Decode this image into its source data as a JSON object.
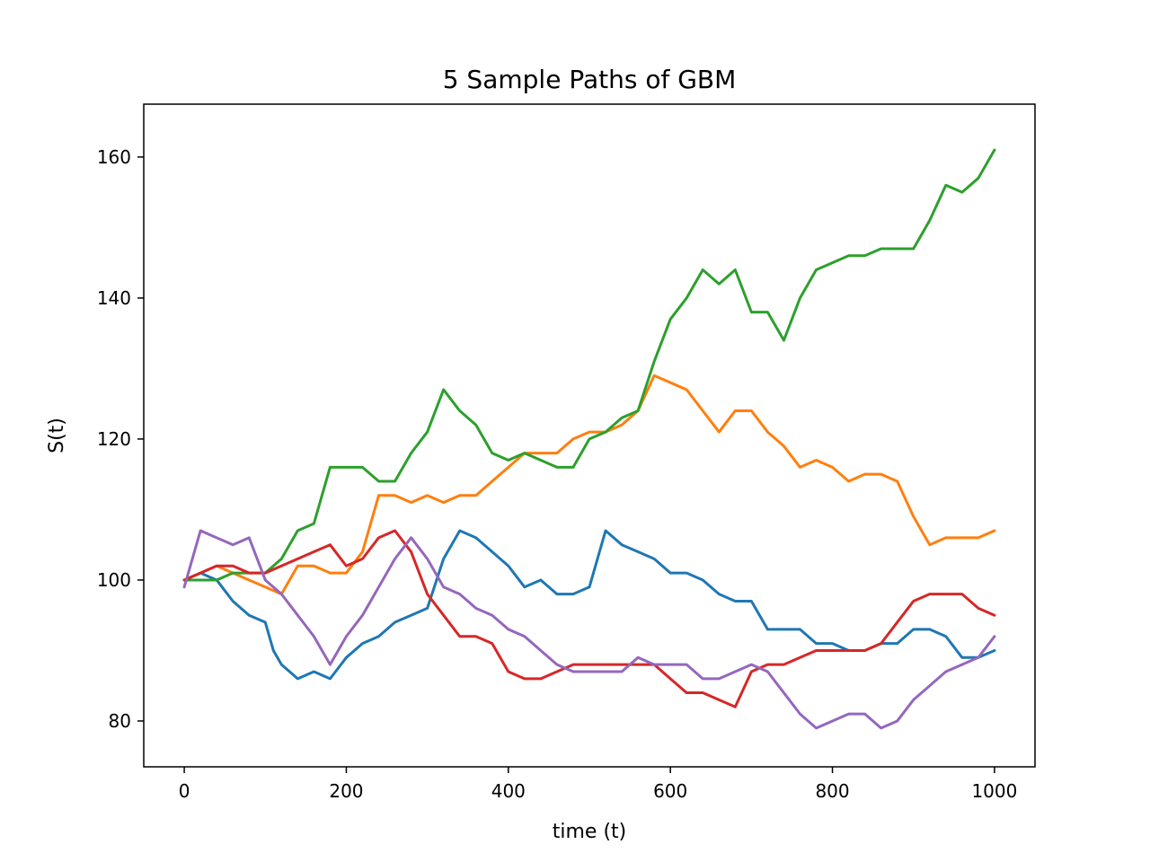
{
  "chart_data": {
    "type": "line",
    "title": "5 Sample Paths of GBM",
    "xlabel": "time (t)",
    "ylabel": "S(t)",
    "xlim": [
      -50,
      1050
    ],
    "ylim": [
      73.5,
      167.5
    ],
    "xticks": [
      0,
      200,
      400,
      600,
      800,
      1000
    ],
    "yticks": [
      80,
      100,
      120,
      140,
      160
    ],
    "grid": false,
    "legend": "none",
    "series": [
      {
        "color": "#1f77b4",
        "points": [
          [
            0,
            100
          ],
          [
            20,
            101
          ],
          [
            40,
            100
          ],
          [
            60,
            97
          ],
          [
            80,
            95
          ],
          [
            100,
            94
          ],
          [
            110,
            90
          ],
          [
            120,
            88
          ],
          [
            140,
            86
          ],
          [
            160,
            87
          ],
          [
            180,
            86
          ],
          [
            200,
            89
          ],
          [
            220,
            91
          ],
          [
            240,
            92
          ],
          [
            260,
            94
          ],
          [
            280,
            95
          ],
          [
            300,
            96
          ],
          [
            320,
            103
          ],
          [
            340,
            107
          ],
          [
            360,
            106
          ],
          [
            380,
            104
          ],
          [
            400,
            102
          ],
          [
            420,
            99
          ],
          [
            440,
            100
          ],
          [
            460,
            98
          ],
          [
            480,
            98
          ],
          [
            500,
            99
          ],
          [
            520,
            107
          ],
          [
            540,
            105
          ],
          [
            560,
            104
          ],
          [
            580,
            103
          ],
          [
            600,
            101
          ],
          [
            620,
            101
          ],
          [
            640,
            100
          ],
          [
            660,
            98
          ],
          [
            680,
            97
          ],
          [
            700,
            97
          ],
          [
            720,
            93
          ],
          [
            740,
            93
          ],
          [
            760,
            93
          ],
          [
            780,
            91
          ],
          [
            800,
            91
          ],
          [
            820,
            90
          ],
          [
            840,
            90
          ],
          [
            860,
            91
          ],
          [
            880,
            91
          ],
          [
            900,
            93
          ],
          [
            920,
            93
          ],
          [
            940,
            92
          ],
          [
            960,
            89
          ],
          [
            980,
            89
          ],
          [
            1000,
            90
          ]
        ]
      },
      {
        "color": "#ff7f0e",
        "points": [
          [
            0,
            100
          ],
          [
            20,
            101
          ],
          [
            40,
            102
          ],
          [
            60,
            101
          ],
          [
            80,
            100
          ],
          [
            100,
            99
          ],
          [
            120,
            98
          ],
          [
            140,
            102
          ],
          [
            160,
            102
          ],
          [
            180,
            101
          ],
          [
            200,
            101
          ],
          [
            220,
            104
          ],
          [
            240,
            112
          ],
          [
            260,
            112
          ],
          [
            280,
            111
          ],
          [
            300,
            112
          ],
          [
            320,
            111
          ],
          [
            340,
            112
          ],
          [
            360,
            112
          ],
          [
            380,
            114
          ],
          [
            400,
            116
          ],
          [
            420,
            118
          ],
          [
            440,
            118
          ],
          [
            460,
            118
          ],
          [
            480,
            120
          ],
          [
            500,
            121
          ],
          [
            520,
            121
          ],
          [
            540,
            122
          ],
          [
            560,
            124
          ],
          [
            580,
            129
          ],
          [
            600,
            128
          ],
          [
            620,
            127
          ],
          [
            640,
            124
          ],
          [
            660,
            121
          ],
          [
            680,
            124
          ],
          [
            700,
            124
          ],
          [
            720,
            121
          ],
          [
            740,
            119
          ],
          [
            760,
            116
          ],
          [
            780,
            117
          ],
          [
            800,
            116
          ],
          [
            820,
            114
          ],
          [
            840,
            115
          ],
          [
            860,
            115
          ],
          [
            880,
            114
          ],
          [
            900,
            109
          ],
          [
            920,
            105
          ],
          [
            940,
            106
          ],
          [
            960,
            106
          ],
          [
            980,
            106
          ],
          [
            1000,
            107
          ]
        ]
      },
      {
        "color": "#2ca02c",
        "points": [
          [
            0,
            100
          ],
          [
            20,
            100
          ],
          [
            40,
            100
          ],
          [
            60,
            101
          ],
          [
            80,
            101
          ],
          [
            100,
            101
          ],
          [
            120,
            103
          ],
          [
            140,
            107
          ],
          [
            160,
            108
          ],
          [
            180,
            116
          ],
          [
            200,
            116
          ],
          [
            220,
            116
          ],
          [
            240,
            114
          ],
          [
            260,
            114
          ],
          [
            280,
            118
          ],
          [
            300,
            121
          ],
          [
            320,
            127
          ],
          [
            340,
            124
          ],
          [
            360,
            122
          ],
          [
            380,
            118
          ],
          [
            400,
            117
          ],
          [
            420,
            118
          ],
          [
            440,
            117
          ],
          [
            460,
            116
          ],
          [
            480,
            116
          ],
          [
            500,
            120
          ],
          [
            520,
            121
          ],
          [
            540,
            123
          ],
          [
            560,
            124
          ],
          [
            580,
            131
          ],
          [
            600,
            137
          ],
          [
            620,
            140
          ],
          [
            640,
            144
          ],
          [
            660,
            142
          ],
          [
            680,
            144
          ],
          [
            700,
            138
          ],
          [
            720,
            138
          ],
          [
            740,
            134
          ],
          [
            760,
            140
          ],
          [
            780,
            144
          ],
          [
            800,
            145
          ],
          [
            820,
            146
          ],
          [
            840,
            146
          ],
          [
            860,
            147
          ],
          [
            880,
            147
          ],
          [
            900,
            147
          ],
          [
            920,
            151
          ],
          [
            940,
            156
          ],
          [
            960,
            155
          ],
          [
            980,
            157
          ],
          [
            1000,
            161
          ]
        ]
      },
      {
        "color": "#d62728",
        "points": [
          [
            0,
            100
          ],
          [
            20,
            101
          ],
          [
            40,
            102
          ],
          [
            60,
            102
          ],
          [
            80,
            101
          ],
          [
            100,
            101
          ],
          [
            120,
            102
          ],
          [
            140,
            103
          ],
          [
            160,
            104
          ],
          [
            180,
            105
          ],
          [
            200,
            102
          ],
          [
            220,
            103
          ],
          [
            240,
            106
          ],
          [
            260,
            107
          ],
          [
            280,
            104
          ],
          [
            300,
            98
          ],
          [
            320,
            95
          ],
          [
            340,
            92
          ],
          [
            360,
            92
          ],
          [
            380,
            91
          ],
          [
            400,
            87
          ],
          [
            420,
            86
          ],
          [
            440,
            86
          ],
          [
            460,
            87
          ],
          [
            480,
            88
          ],
          [
            500,
            88
          ],
          [
            520,
            88
          ],
          [
            540,
            88
          ],
          [
            560,
            88
          ],
          [
            580,
            88
          ],
          [
            600,
            86
          ],
          [
            620,
            84
          ],
          [
            640,
            84
          ],
          [
            660,
            83
          ],
          [
            680,
            82
          ],
          [
            700,
            87
          ],
          [
            720,
            88
          ],
          [
            740,
            88
          ],
          [
            760,
            89
          ],
          [
            780,
            90
          ],
          [
            800,
            90
          ],
          [
            820,
            90
          ],
          [
            840,
            90
          ],
          [
            860,
            91
          ],
          [
            880,
            94
          ],
          [
            900,
            97
          ],
          [
            920,
            98
          ],
          [
            940,
            98
          ],
          [
            960,
            98
          ],
          [
            980,
            96
          ],
          [
            1000,
            95
          ]
        ]
      },
      {
        "color": "#9467bd",
        "points": [
          [
            0,
            99
          ],
          [
            20,
            107
          ],
          [
            40,
            106
          ],
          [
            60,
            105
          ],
          [
            80,
            106
          ],
          [
            100,
            100
          ],
          [
            120,
            98
          ],
          [
            140,
            95
          ],
          [
            160,
            92
          ],
          [
            180,
            88
          ],
          [
            200,
            92
          ],
          [
            220,
            95
          ],
          [
            240,
            99
          ],
          [
            260,
            103
          ],
          [
            280,
            106
          ],
          [
            300,
            103
          ],
          [
            320,
            99
          ],
          [
            340,
            98
          ],
          [
            360,
            96
          ],
          [
            380,
            95
          ],
          [
            400,
            93
          ],
          [
            420,
            92
          ],
          [
            440,
            90
          ],
          [
            460,
            88
          ],
          [
            480,
            87
          ],
          [
            500,
            87
          ],
          [
            520,
            87
          ],
          [
            540,
            87
          ],
          [
            560,
            89
          ],
          [
            580,
            88
          ],
          [
            600,
            88
          ],
          [
            620,
            88
          ],
          [
            640,
            86
          ],
          [
            660,
            86
          ],
          [
            680,
            87
          ],
          [
            700,
            88
          ],
          [
            720,
            87
          ],
          [
            740,
            84
          ],
          [
            760,
            81
          ],
          [
            780,
            79
          ],
          [
            800,
            80
          ],
          [
            820,
            81
          ],
          [
            840,
            81
          ],
          [
            860,
            79
          ],
          [
            880,
            80
          ],
          [
            900,
            83
          ],
          [
            920,
            85
          ],
          [
            940,
            87
          ],
          [
            960,
            88
          ],
          [
            980,
            89
          ],
          [
            1000,
            92
          ]
        ]
      }
    ]
  }
}
